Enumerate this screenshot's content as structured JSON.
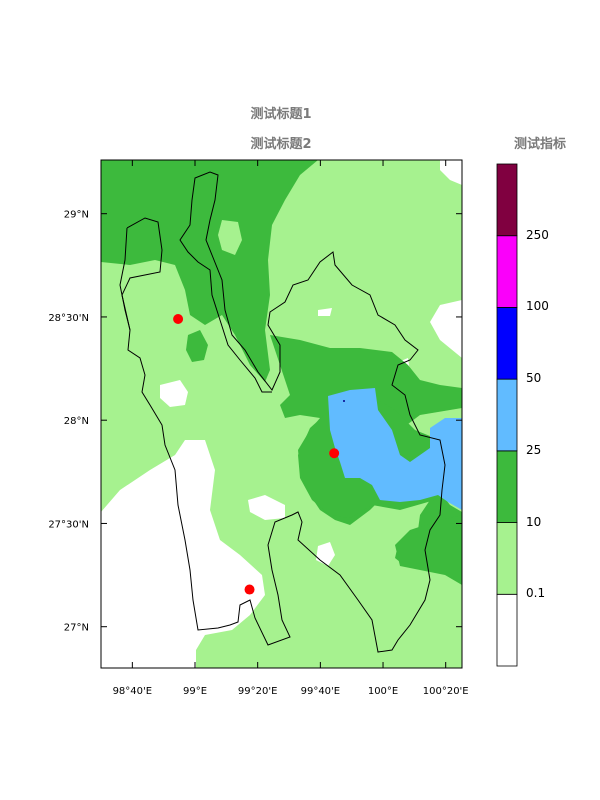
{
  "title1": "测试标题1",
  "title2": "测试标题2",
  "legend": {
    "title": "测试指标",
    "colors": [
      "#ffffff",
      "#a6f28f",
      "#3dba3d",
      "#61bbff",
      "#0000ff",
      "#fa00fa",
      "#800040"
    ],
    "breaks": [
      "0.1",
      "10",
      "25",
      "50",
      "100",
      "250"
    ]
  },
  "axes": {
    "x_ticks": [
      "98°40'E",
      "99°E",
      "99°20'E",
      "99°40'E",
      "100°E",
      "100°20'E"
    ],
    "y_ticks": [
      "29°N",
      "28°30'N",
      "28°N",
      "27°30'N",
      "27°N"
    ]
  },
  "stations": [
    {
      "lon": 98.91,
      "lat": 28.49
    },
    {
      "lon": 99.74,
      "lat": 27.84
    },
    {
      "lon": 99.29,
      "lat": 27.18
    }
  ]
}
